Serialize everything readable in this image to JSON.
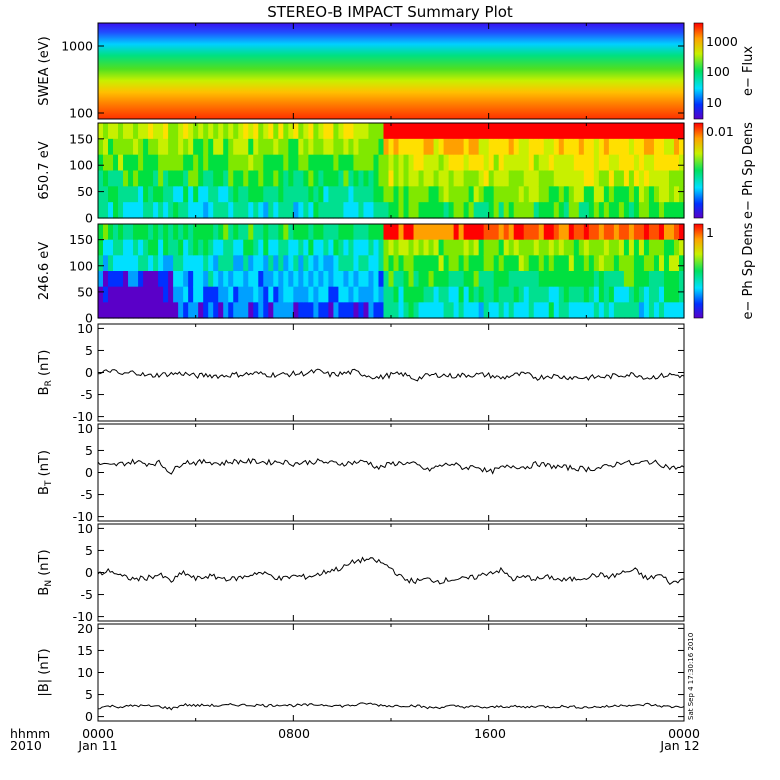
{
  "chart_data": {
    "type": "multi-panel",
    "title": "STEREO-B IMPACT Summary Plot",
    "x_axis": {
      "tick_labels": [
        "0000",
        "0800",
        "1600",
        "0000"
      ],
      "date_labels": [
        "Jan 11",
        "Jan 12"
      ],
      "left_labels": [
        "hhmm",
        "2010"
      ]
    },
    "stamp": "Sat Sep  4 17:30:16 2010",
    "panels": [
      {
        "id": "swea",
        "type": "heatmap",
        "ylabel": "SWEA (eV)",
        "y_log": true,
        "ylim": [
          100,
          2000
        ],
        "yticks": [
          "1000",
          "100"
        ],
        "colorbar": {
          "label": "e− Flux",
          "ticks": [
            "1000",
            "100",
            "10"
          ],
          "log": true
        },
        "description_rows": [
          {
            "energy": 2000,
            "level": 0.05
          },
          {
            "energy": 1000,
            "level": 0.22
          },
          {
            "energy": 500,
            "level": 0.48
          },
          {
            "energy": 250,
            "level": 0.72
          },
          {
            "energy": 100,
            "level": 0.95
          }
        ]
      },
      {
        "id": "pad_650",
        "type": "heatmap",
        "ylabel": "650.7 eV",
        "ylim": [
          0,
          180
        ],
        "yticks": [
          "150",
          "100",
          "50",
          "0"
        ],
        "colorbar": {
          "label": "e− Ph Sp Dens",
          "ticks": [
            "0.01"
          ],
          "log": true
        }
      },
      {
        "id": "pad_246",
        "type": "heatmap",
        "ylabel": "246.6 eV",
        "ylim": [
          0,
          180
        ],
        "yticks": [
          "150",
          "100",
          "50",
          "0"
        ],
        "colorbar": {
          "label": "e− Ph Sp Dens",
          "ticks": [
            "1"
          ],
          "log": true
        }
      },
      {
        "id": "br",
        "type": "line",
        "ylabel": "B",
        "ylabel_sub": "R",
        "ylabel_unit": "(nT)",
        "ylim": [
          -11,
          11
        ],
        "yticks": [
          "10",
          "5",
          "0",
          "-5",
          "-10"
        ],
        "x": [
          0,
          0.5,
          1,
          1.5,
          2,
          2.5,
          3,
          3.5,
          4,
          4.5,
          5,
          5.5,
          6,
          6.5,
          7,
          7.5,
          8,
          8.5,
          9,
          9.5,
          10,
          10.5,
          11,
          11.5,
          12,
          12.5,
          13,
          13.5,
          14,
          14.5,
          15,
          15.5,
          16,
          16.5,
          17,
          17.5,
          18,
          18.5,
          19,
          19.5,
          20,
          20.5,
          21,
          21.5,
          22,
          22.5,
          23,
          23.5,
          24
        ],
        "values": [
          -0.5,
          0.5,
          -0.5,
          0.2,
          -0.8,
          -0.5,
          -0.3,
          -0.2,
          -0.8,
          -0.6,
          -0.8,
          -0.5,
          -0.4,
          -0.2,
          -0.5,
          -0.5,
          -0.3,
          -0.2,
          0.3,
          -0.5,
          -0.3,
          0.2,
          -0.6,
          -1.2,
          -0.5,
          -0.4,
          -1.5,
          -0.7,
          -0.5,
          -0.8,
          -0.6,
          -0.5,
          -0.6,
          -1.3,
          -0.6,
          -0.4,
          -1.2,
          -0.7,
          -1.0,
          -1.1,
          -1.2,
          -1.0,
          -0.9,
          -0.5,
          -0.4,
          -1.2,
          -0.8,
          -0.5,
          -0.8
        ]
      },
      {
        "id": "bt",
        "type": "line",
        "ylabel": "B",
        "ylabel_sub": "T",
        "ylabel_unit": "(nT)",
        "ylim": [
          -11,
          11
        ],
        "yticks": [
          "10",
          "5",
          "0",
          "-5",
          "-10"
        ],
        "x": [
          0,
          0.5,
          1,
          1.5,
          2,
          2.5,
          3,
          3.5,
          4,
          4.5,
          5,
          5.5,
          6,
          6.5,
          7,
          7.5,
          8,
          8.5,
          9,
          9.5,
          10,
          10.5,
          11,
          11.5,
          12,
          12.5,
          13,
          13.5,
          14,
          14.5,
          15,
          15.5,
          16,
          16.5,
          17,
          17.5,
          18,
          18.5,
          19,
          19.5,
          20,
          20.5,
          21,
          21.5,
          22,
          22.5,
          23,
          23.5,
          24
        ],
        "values": [
          2.0,
          1.5,
          2.0,
          2.5,
          2.0,
          2.2,
          0.0,
          2.5,
          2.2,
          2.5,
          2.0,
          2.5,
          2.5,
          2.5,
          2.3,
          2.5,
          2.0,
          2.3,
          2.5,
          2.2,
          2.0,
          2.3,
          2.5,
          1.0,
          2.0,
          2.2,
          1.8,
          0.5,
          1.5,
          2.0,
          1.0,
          1.5,
          0.0,
          1.0,
          1.5,
          1.2,
          2.0,
          1.5,
          1.2,
          1.0,
          0.8,
          1.0,
          1.5,
          2.5,
          1.8,
          2.5,
          2.0,
          1.0,
          1.2
        ]
      },
      {
        "id": "bn",
        "type": "line",
        "ylabel": "B",
        "ylabel_sub": "N",
        "ylabel_unit": "(nT)",
        "ylim": [
          -11,
          11
        ],
        "yticks": [
          "10",
          "5",
          "0",
          "-5",
          "-10"
        ],
        "x": [
          0,
          0.5,
          1,
          1.5,
          2,
          2.5,
          3,
          3.5,
          4,
          4.5,
          5,
          5.5,
          6,
          6.5,
          7,
          7.5,
          8,
          8.5,
          9,
          9.5,
          10,
          10.5,
          11,
          11.5,
          12,
          12.5,
          13,
          13.5,
          14,
          14.5,
          15,
          15.5,
          16,
          16.5,
          17,
          17.5,
          18,
          18.5,
          19,
          19.5,
          20,
          20.5,
          21,
          21.5,
          22,
          22.5,
          23,
          23.5,
          24
        ],
        "values": [
          -0.5,
          0.5,
          -1.0,
          -1.5,
          -1.2,
          -0.5,
          -2.0,
          0.0,
          -1.5,
          -0.8,
          -1.2,
          -1.5,
          -1.0,
          0.0,
          -0.5,
          -1.5,
          -0.8,
          -1.0,
          -0.5,
          0.5,
          1.0,
          2.5,
          3.0,
          2.5,
          1.0,
          -1.5,
          -2.0,
          -1.5,
          -2.0,
          -1.5,
          -1.5,
          -1.0,
          0.0,
          0.5,
          -1.5,
          -1.0,
          -1.5,
          -1.0,
          -1.8,
          -1.5,
          -1.0,
          -0.5,
          -1.0,
          0.0,
          0.5,
          -1.5,
          -0.5,
          -2.5,
          -1.5
        ]
      },
      {
        "id": "btot",
        "type": "line",
        "ylabel": "|B|",
        "ylabel_unit": "(nT)",
        "ylim": [
          -1,
          21
        ],
        "yticks": [
          "20",
          "15",
          "10",
          "5",
          "0"
        ],
        "x": [
          0,
          0.5,
          1,
          1.5,
          2,
          2.5,
          3,
          3.5,
          4,
          4.5,
          5,
          5.5,
          6,
          6.5,
          7,
          7.5,
          8,
          8.5,
          9,
          9.5,
          10,
          10.5,
          11,
          11.5,
          12,
          12.5,
          13,
          13.5,
          14,
          14.5,
          15,
          15.5,
          16,
          16.5,
          17,
          17.5,
          18,
          18.5,
          19,
          19.5,
          20,
          20.5,
          21,
          21.5,
          22,
          22.5,
          23,
          23.5,
          24
        ],
        "values": [
          2.0,
          2.4,
          2.2,
          2.5,
          2.4,
          2.3,
          1.8,
          2.7,
          2.5,
          2.6,
          2.4,
          2.7,
          2.6,
          2.6,
          2.5,
          2.7,
          2.5,
          2.6,
          2.7,
          2.6,
          2.4,
          2.6,
          3.0,
          2.6,
          2.4,
          2.5,
          2.5,
          2.0,
          2.1,
          2.4,
          2.2,
          2.2,
          2.0,
          2.3,
          2.3,
          2.1,
          2.4,
          2.2,
          2.3,
          2.2,
          2.1,
          2.2,
          2.3,
          2.7,
          2.4,
          2.8,
          2.4,
          2.2,
          2.3
        ]
      }
    ]
  }
}
